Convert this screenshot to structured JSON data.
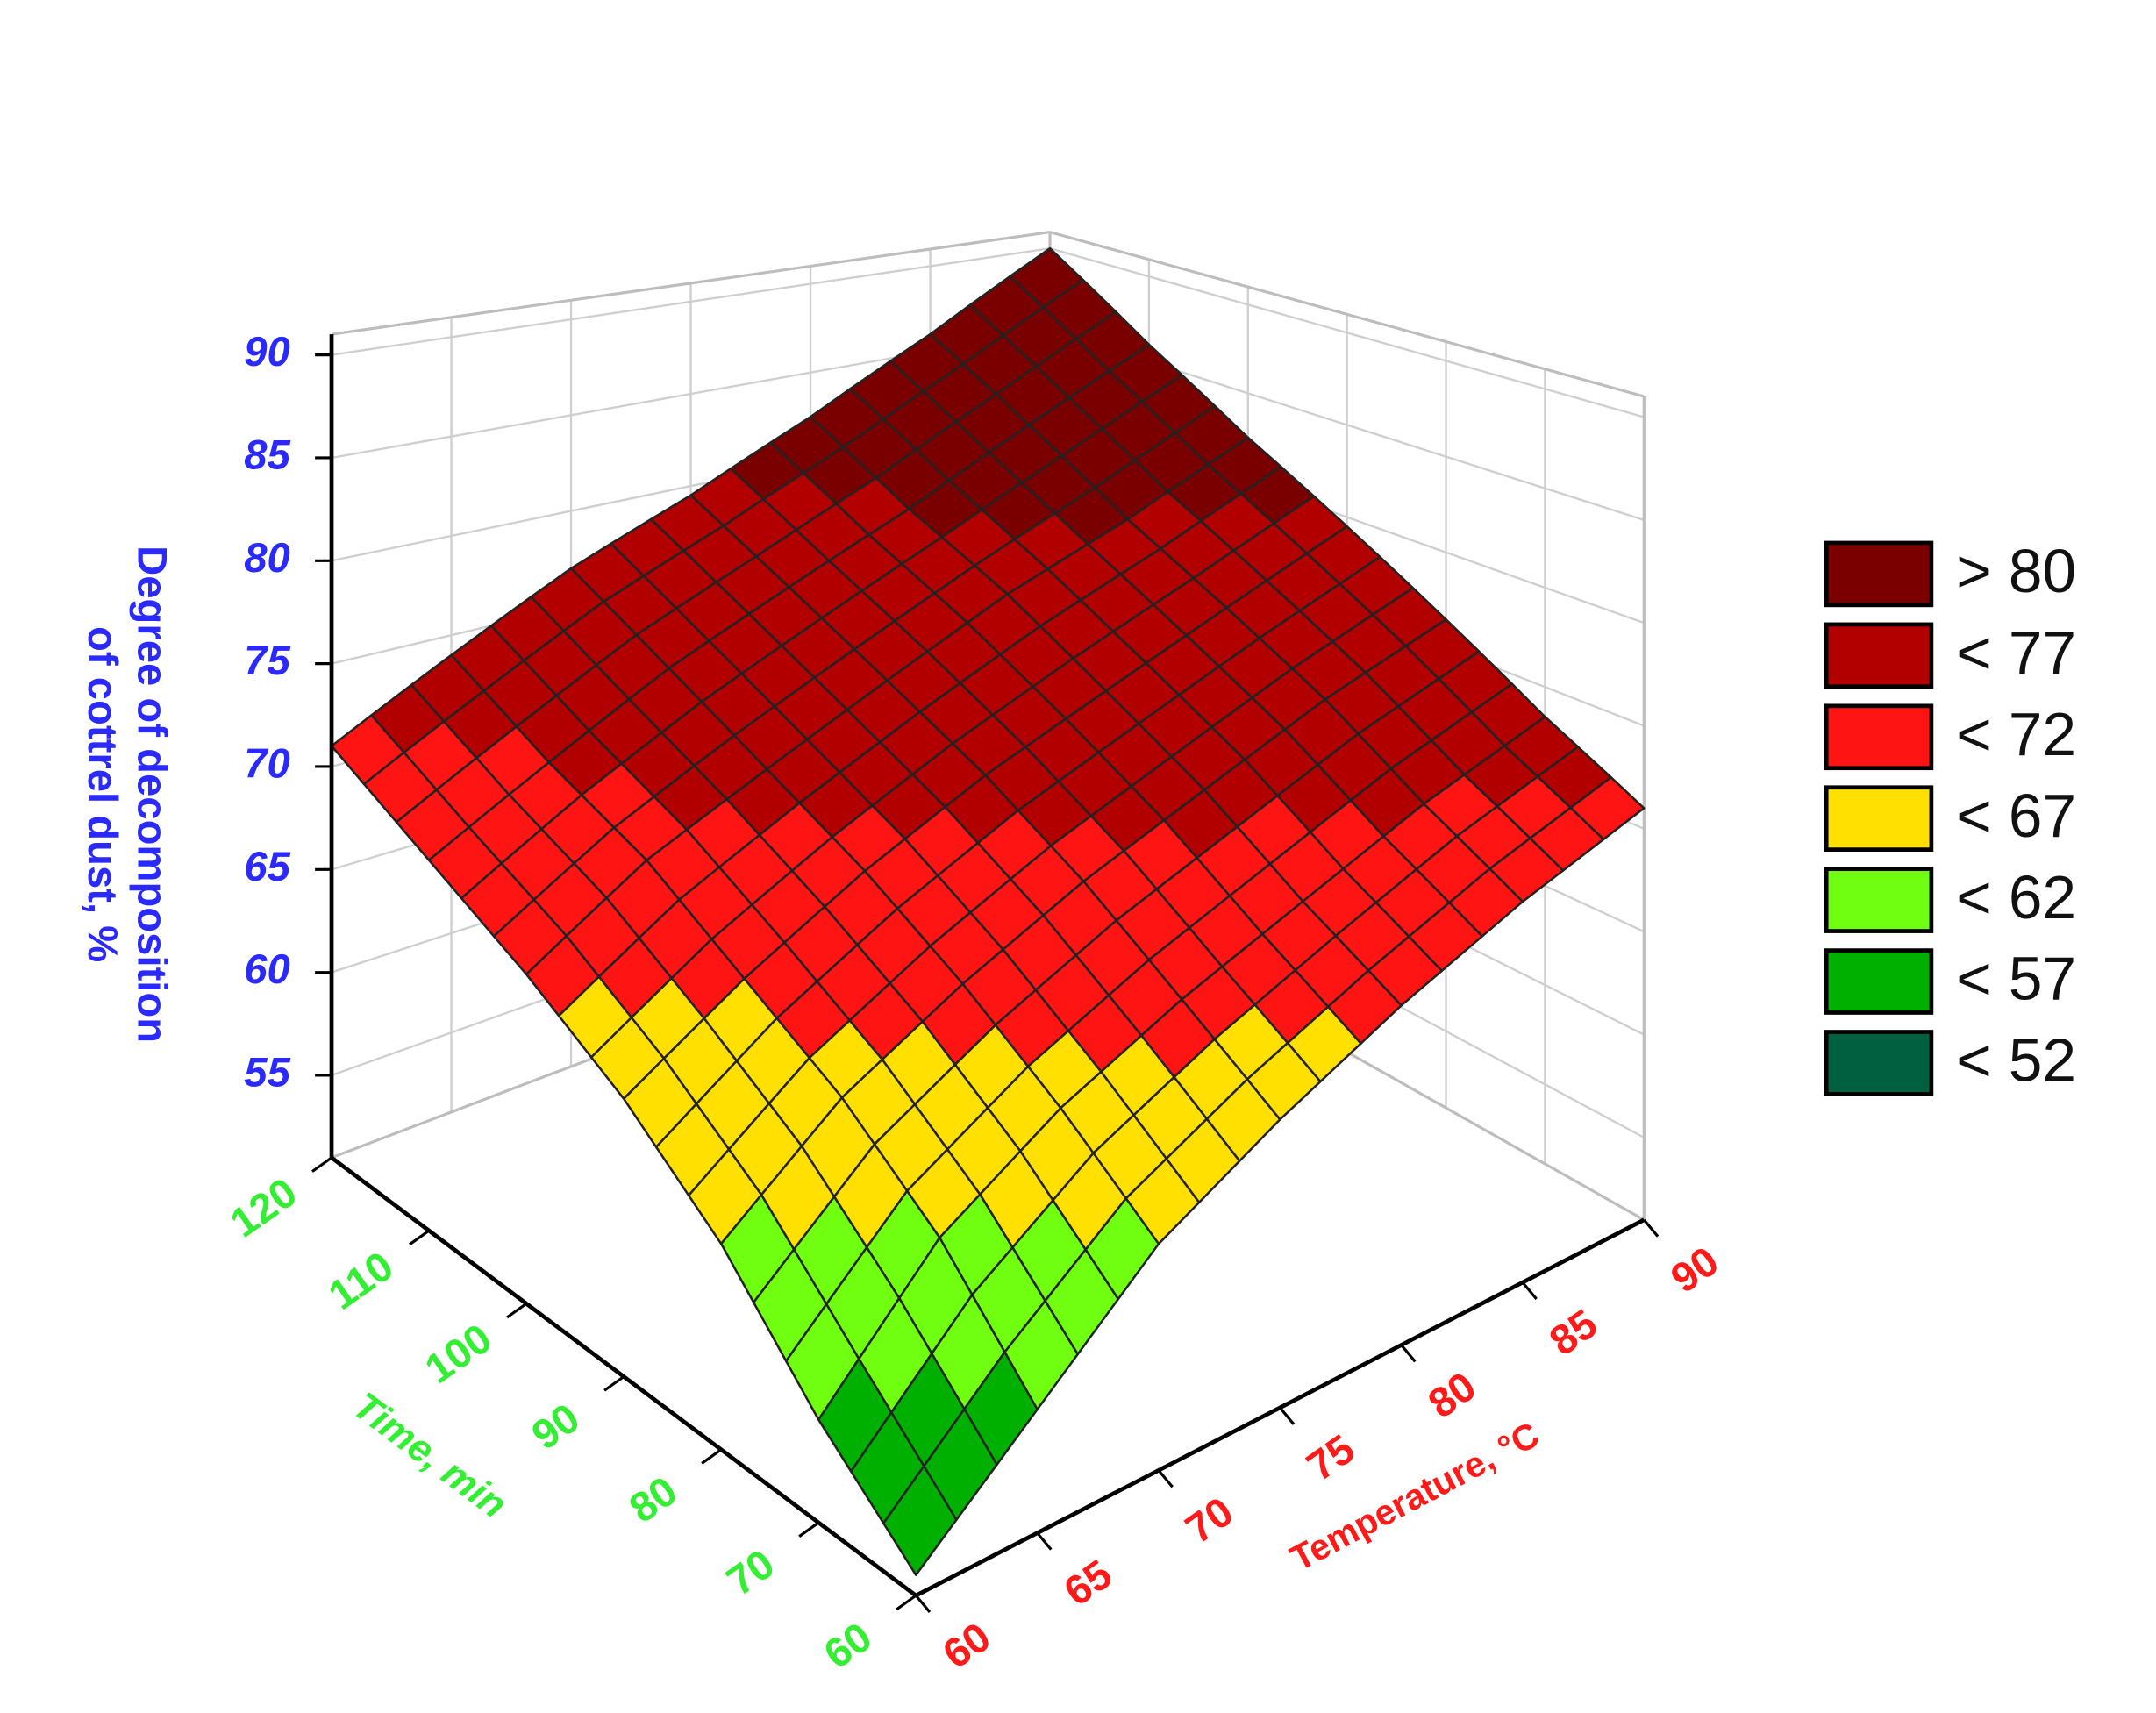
{
  "chart_data": {
    "type": "surface",
    "xlabel": "Temperature, °C",
    "xlabel_color": "#ff1a1a",
    "ylabel": "Time, min",
    "ylabel_color": "#33ee33",
    "zlabel": [
      "Degree of decomposition",
      "of cottrel dust, %"
    ],
    "zlabel_color": "#2a2aff",
    "x": [
      60,
      65,
      70,
      75,
      80,
      85,
      90
    ],
    "y": [
      60,
      70,
      80,
      90,
      100,
      110,
      120
    ],
    "z": [
      [
        52,
        57,
        62,
        65,
        67.5,
        69.5,
        71
      ],
      [
        56,
        62,
        65.5,
        68,
        70,
        72,
        73.5
      ],
      [
        61,
        65.5,
        68.5,
        71,
        73,
        75,
        76.5
      ],
      [
        64.5,
        68,
        71,
        73.5,
        75.5,
        77.5,
        79.5
      ],
      [
        67,
        70.5,
        73,
        75.5,
        78,
        80,
        82.5
      ],
      [
        69,
        72,
        75,
        77.5,
        80,
        83,
        86
      ],
      [
        71,
        74,
        77,
        79.5,
        82.5,
        86,
        90
      ]
    ],
    "xlim": [
      60,
      90
    ],
    "xticks": [
      60,
      65,
      70,
      75,
      80,
      85,
      90
    ],
    "ylim": [
      60,
      120
    ],
    "yticks": [
      60,
      70,
      80,
      90,
      100,
      110,
      120
    ],
    "zlim": [
      51,
      91
    ],
    "zticks": [
      55,
      60,
      65,
      70,
      75,
      80,
      85,
      90
    ],
    "grid": true,
    "legend": [
      {
        "label": "> 80",
        "threshold": 80,
        "color": "#7a0000"
      },
      {
        "label": "< 77",
        "threshold": 77,
        "color": "#b20000"
      },
      {
        "label": "< 72",
        "threshold": 72,
        "color": "#ff1414"
      },
      {
        "label": "< 67",
        "threshold": 67,
        "color": "#ffe000"
      },
      {
        "label": "< 62",
        "threshold": 62,
        "color": "#70ff10"
      },
      {
        "label": "< 57",
        "threshold": 57,
        "color": "#00b000"
      },
      {
        "label": "< 52",
        "threshold": 52,
        "color": "#006040"
      }
    ]
  }
}
